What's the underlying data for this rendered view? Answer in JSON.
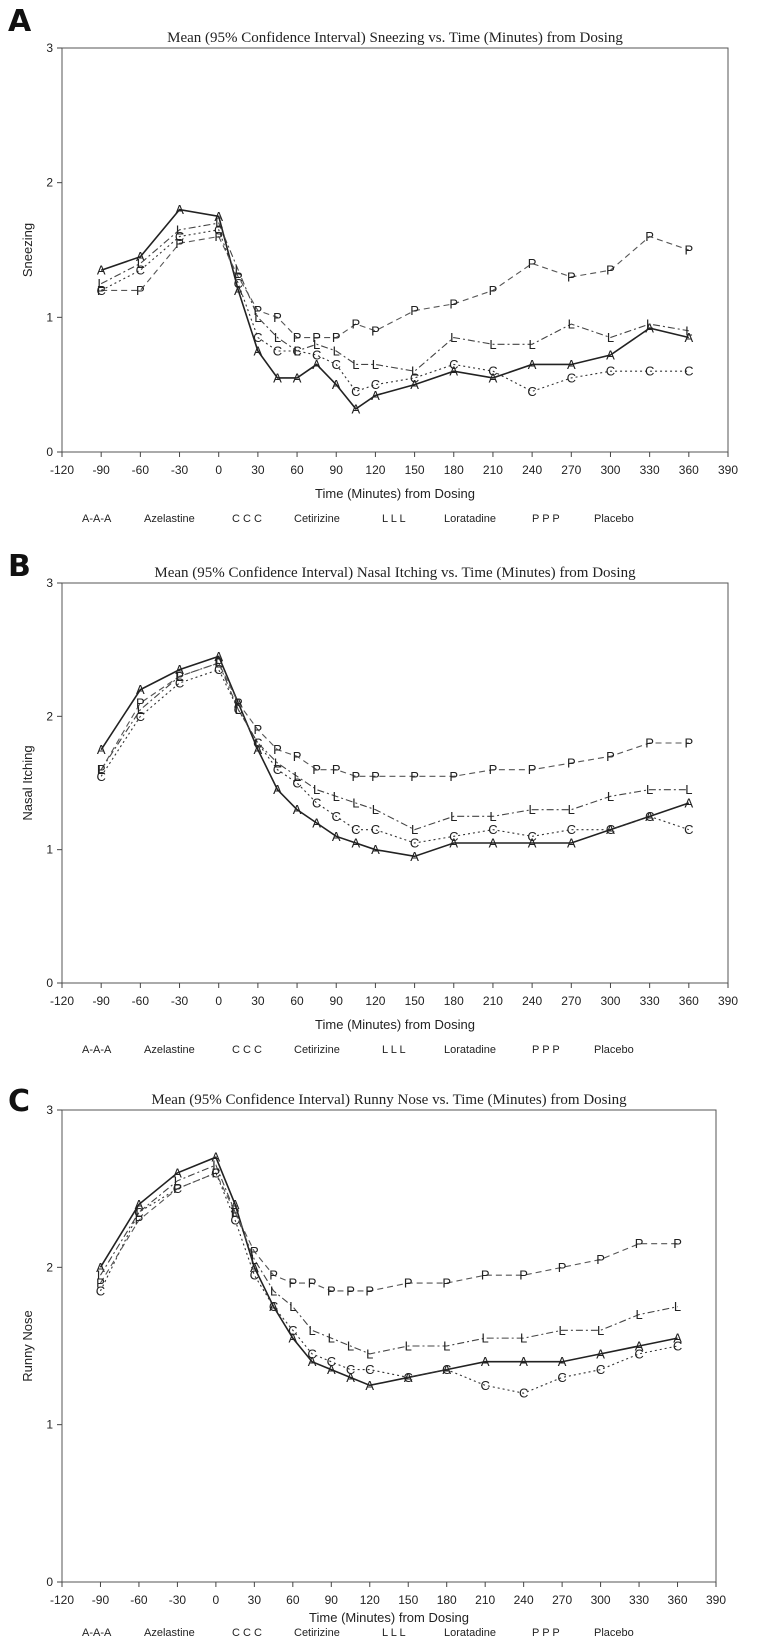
{
  "panels": [
    {
      "letter": "A"
    },
    {
      "letter": "B"
    },
    {
      "letter": "C"
    }
  ],
  "legend": [
    {
      "symbol": "A-A-A",
      "label": "Azelastine",
      "style": "solid",
      "color": "#222222"
    },
    {
      "symbol": "C C C",
      "label": "Cetirizine",
      "style": "dotted",
      "color": "#333333"
    },
    {
      "symbol": "L L L",
      "label": "Loratadine",
      "style": "dashdot",
      "color": "#444444"
    },
    {
      "symbol": "P P P",
      "label": "Placebo",
      "style": "dashed",
      "color": "#555555"
    }
  ],
  "chart_data": [
    {
      "type": "line",
      "title": "Mean (95% Confidence Interval) Sneezing vs. Time (Minutes) from Dosing",
      "xlabel": "Time (Minutes) from Dosing",
      "ylabel": "Sneezing",
      "xlim": [
        -120,
        390
      ],
      "ylim": [
        0,
        3
      ],
      "xticks": [
        -120,
        -90,
        -60,
        -30,
        0,
        30,
        60,
        90,
        120,
        150,
        180,
        210,
        240,
        270,
        300,
        330,
        360,
        390
      ],
      "yticks": [
        0,
        1,
        2,
        3
      ],
      "x": [
        -90,
        -60,
        -30,
        0,
        15,
        30,
        45,
        60,
        75,
        90,
        105,
        120,
        150,
        180,
        210,
        240,
        270,
        300,
        330,
        360
      ],
      "series": [
        {
          "name": "Azelastine",
          "symbol": "A",
          "values": [
            1.35,
            1.45,
            1.8,
            1.75,
            1.2,
            0.75,
            0.55,
            0.55,
            0.65,
            0.5,
            0.32,
            0.42,
            0.5,
            0.6,
            0.55,
            0.65,
            0.65,
            0.72,
            0.92,
            0.85
          ]
        },
        {
          "name": "Cetirizine",
          "symbol": "C",
          "values": [
            1.2,
            1.35,
            1.6,
            1.65,
            1.25,
            0.85,
            0.75,
            0.75,
            0.72,
            0.65,
            0.45,
            0.5,
            0.55,
            0.65,
            0.6,
            0.45,
            0.55,
            0.6,
            0.6,
            0.6
          ]
        },
        {
          "name": "Loratadine",
          "symbol": "L",
          "values": [
            1.25,
            1.4,
            1.65,
            1.7,
            1.35,
            1.0,
            0.85,
            0.75,
            0.8,
            0.75,
            0.65,
            0.65,
            0.6,
            0.85,
            0.8,
            0.8,
            0.95,
            0.85,
            0.95,
            0.9
          ]
        },
        {
          "name": "Placebo",
          "symbol": "P",
          "values": [
            1.2,
            1.2,
            1.55,
            1.6,
            1.3,
            1.05,
            1.0,
            0.85,
            0.85,
            0.85,
            0.95,
            0.9,
            1.05,
            1.1,
            1.2,
            1.4,
            1.3,
            1.35,
            1.6,
            1.5
          ]
        }
      ]
    },
    {
      "type": "line",
      "title": "Mean (95% Confidence Interval) Nasal Itching vs. Time (Minutes) from Dosing",
      "xlabel": "Time (Minutes) from Dosing",
      "ylabel": "Nasal Itching",
      "xlim": [
        -120,
        390
      ],
      "ylim": [
        0,
        3
      ],
      "xticks": [
        -120,
        -90,
        -60,
        -30,
        0,
        30,
        60,
        90,
        120,
        150,
        180,
        210,
        240,
        270,
        300,
        330,
        360,
        390
      ],
      "yticks": [
        0,
        1,
        2,
        3
      ],
      "x": [
        -90,
        -60,
        -30,
        0,
        15,
        30,
        45,
        60,
        75,
        90,
        105,
        120,
        150,
        180,
        210,
        240,
        270,
        300,
        330,
        360
      ],
      "series": [
        {
          "name": "Azelastine",
          "symbol": "A",
          "values": [
            1.75,
            2.2,
            2.35,
            2.45,
            2.1,
            1.75,
            1.45,
            1.3,
            1.2,
            1.1,
            1.05,
            1.0,
            0.95,
            1.05,
            1.05,
            1.05,
            1.05,
            1.15,
            1.25,
            1.35
          ]
        },
        {
          "name": "Cetirizine",
          "symbol": "C",
          "values": [
            1.55,
            2.0,
            2.25,
            2.35,
            2.05,
            1.8,
            1.6,
            1.5,
            1.35,
            1.25,
            1.15,
            1.15,
            1.05,
            1.1,
            1.15,
            1.1,
            1.15,
            1.15,
            1.25,
            1.15
          ]
        },
        {
          "name": "Loratadine",
          "symbol": "L",
          "values": [
            1.6,
            2.05,
            2.3,
            2.4,
            2.05,
            1.8,
            1.65,
            1.55,
            1.45,
            1.4,
            1.35,
            1.3,
            1.15,
            1.25,
            1.25,
            1.3,
            1.3,
            1.4,
            1.45,
            1.45
          ]
        },
        {
          "name": "Placebo",
          "symbol": "P",
          "values": [
            1.6,
            2.1,
            2.3,
            2.4,
            2.1,
            1.9,
            1.75,
            1.7,
            1.6,
            1.6,
            1.55,
            1.55,
            1.55,
            1.55,
            1.6,
            1.6,
            1.65,
            1.7,
            1.8,
            1.8
          ]
        }
      ]
    },
    {
      "type": "line",
      "title": "Mean (95% Confidence Interval) Runny Nose vs. Time (Minutes) from Dosing",
      "xlabel": "Time (Minutes) from Dosing",
      "ylabel": "Runny Nose",
      "xlim": [
        -120,
        390
      ],
      "ylim": [
        0,
        3
      ],
      "xticks": [
        -120,
        -90,
        -60,
        -30,
        0,
        30,
        60,
        90,
        120,
        150,
        180,
        210,
        240,
        270,
        300,
        330,
        360,
        390
      ],
      "yticks": [
        0,
        1,
        2,
        3
      ],
      "x": [
        -90,
        -60,
        -30,
        0,
        15,
        30,
        45,
        60,
        75,
        90,
        105,
        120,
        150,
        180,
        210,
        240,
        270,
        300,
        330,
        360
      ],
      "series": [
        {
          "name": "Azelastine",
          "symbol": "A",
          "values": [
            2.0,
            2.4,
            2.6,
            2.7,
            2.4,
            2.0,
            1.75,
            1.55,
            1.4,
            1.35,
            1.3,
            1.25,
            1.3,
            1.35,
            1.4,
            1.4,
            1.4,
            1.45,
            1.5,
            1.55
          ]
        },
        {
          "name": "Cetirizine",
          "symbol": "C",
          "values": [
            1.85,
            2.35,
            2.5,
            2.6,
            2.3,
            1.95,
            1.75,
            1.6,
            1.45,
            1.4,
            1.35,
            1.35,
            1.3,
            1.35,
            1.25,
            1.2,
            1.3,
            1.35,
            1.45,
            1.5
          ]
        },
        {
          "name": "Loratadine",
          "symbol": "L",
          "values": [
            1.95,
            2.35,
            2.55,
            2.65,
            2.35,
            2.05,
            1.85,
            1.75,
            1.6,
            1.55,
            1.5,
            1.45,
            1.5,
            1.5,
            1.55,
            1.55,
            1.6,
            1.6,
            1.7,
            1.75
          ]
        },
        {
          "name": "Placebo",
          "symbol": "P",
          "values": [
            1.9,
            2.3,
            2.5,
            2.6,
            2.35,
            2.1,
            1.95,
            1.9,
            1.9,
            1.85,
            1.85,
            1.85,
            1.9,
            1.9,
            1.95,
            1.95,
            2.0,
            2.05,
            2.15,
            2.15
          ]
        }
      ]
    }
  ]
}
